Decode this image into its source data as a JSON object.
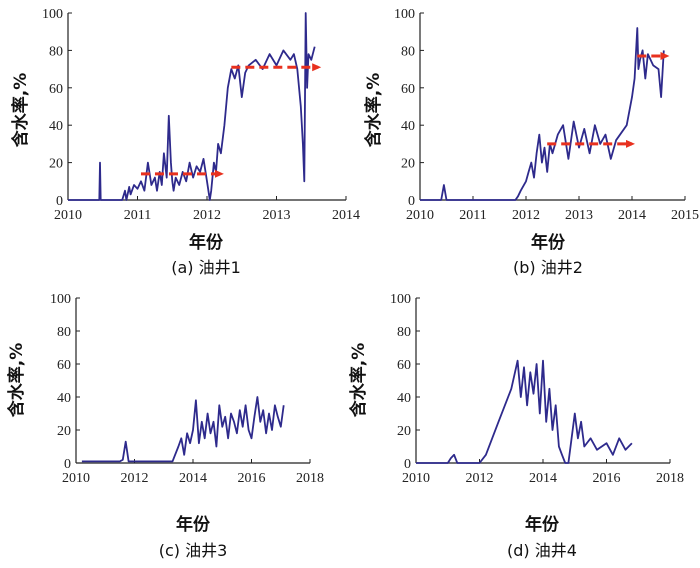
{
  "colors": {
    "line": "#2e2a8c",
    "arrow": "#e8311f",
    "axis": "#222222"
  },
  "chart_data": [
    {
      "type": "line",
      "caption": "(a) 油井1",
      "xlabel": "年份",
      "ylabel": "含水率,%",
      "xlim": [
        2010,
        2014
      ],
      "ylim": [
        0,
        100
      ],
      "xticks": [
        "2010",
        "2011",
        "2012",
        "2013",
        "2014"
      ],
      "yticks": [
        "0",
        "20",
        "40",
        "60",
        "80",
        "100"
      ],
      "series": [
        {
          "x": [
            2010.0,
            2010.45,
            2010.46,
            2010.47,
            2010.48,
            2010.7,
            2010.78,
            2010.82,
            2010.84,
            2010.88,
            2010.9,
            2010.95,
            2011.0,
            2011.05,
            2011.1,
            2011.15,
            2011.2,
            2011.25,
            2011.28,
            2011.32,
            2011.35,
            2011.38,
            2011.42,
            2011.45,
            2011.48,
            2011.5,
            2011.52,
            2011.55,
            2011.6,
            2011.65,
            2011.7,
            2011.75,
            2011.8,
            2011.85,
            2011.9,
            2011.95,
            2012.0,
            2012.04,
            2012.06,
            2012.1,
            2012.13,
            2012.16,
            2012.2,
            2012.25,
            2012.3,
            2012.35,
            2012.4,
            2012.45,
            2012.5,
            2012.55,
            2012.6,
            2012.7,
            2012.8,
            2012.9,
            2013.0,
            2013.1,
            2013.2,
            2013.25,
            2013.3,
            2013.35,
            2013.38,
            2013.4,
            2013.42,
            2013.44,
            2013.46,
            2013.5,
            2013.55
          ],
          "y": [
            0,
            0,
            20,
            0,
            0,
            0,
            0,
            5,
            0,
            7,
            3,
            8,
            6,
            10,
            5,
            20,
            8,
            12,
            5,
            15,
            8,
            25,
            12,
            45,
            20,
            10,
            5,
            12,
            8,
            15,
            10,
            20,
            12,
            18,
            15,
            22,
            10,
            0,
            5,
            20,
            15,
            30,
            25,
            40,
            60,
            70,
            65,
            72,
            55,
            68,
            72,
            75,
            70,
            78,
            72,
            80,
            75,
            78,
            70,
            50,
            30,
            10,
            100,
            60,
            78,
            75,
            82
          ]
        }
      ],
      "arrows": [
        {
          "from": [
            2011.05,
            14
          ],
          "to": [
            2012.2,
            14
          ]
        },
        {
          "from": [
            2012.35,
            71
          ],
          "to": [
            2013.6,
            71
          ]
        }
      ]
    },
    {
      "type": "line",
      "caption": "(b) 油井2",
      "xlabel": "年份",
      "ylabel": "含水率,%",
      "xlim": [
        2010,
        2015
      ],
      "ylim": [
        0,
        100
      ],
      "xticks": [
        "2010",
        "2011",
        "2012",
        "2013",
        "2014",
        "2015"
      ],
      "yticks": [
        "0",
        "20",
        "40",
        "60",
        "80",
        "100"
      ],
      "series": [
        {
          "x": [
            2010.0,
            2010.4,
            2010.45,
            2010.5,
            2010.8,
            2011.5,
            2011.8,
            2011.85,
            2011.9,
            2012.0,
            2012.05,
            2012.1,
            2012.15,
            2012.2,
            2012.25,
            2012.3,
            2012.35,
            2012.4,
            2012.45,
            2012.5,
            2012.6,
            2012.7,
            2012.8,
            2012.9,
            2013.0,
            2013.1,
            2013.2,
            2013.3,
            2013.4,
            2013.5,
            2013.6,
            2013.7,
            2013.8,
            2013.9,
            2014.0,
            2014.05,
            2014.1,
            2014.12,
            2014.15,
            2014.2,
            2014.25,
            2014.3,
            2014.4,
            2014.5,
            2014.55,
            2014.6
          ],
          "y": [
            0,
            0,
            8,
            0,
            0,
            0,
            0,
            2,
            5,
            10,
            15,
            20,
            12,
            25,
            35,
            20,
            28,
            15,
            30,
            25,
            35,
            40,
            22,
            42,
            28,
            38,
            25,
            40,
            30,
            35,
            22,
            32,
            36,
            40,
            55,
            65,
            92,
            70,
            75,
            80,
            65,
            78,
            72,
            70,
            55,
            80
          ]
        }
      ],
      "arrows": [
        {
          "from": [
            2012.4,
            30
          ],
          "to": [
            2014.0,
            30
          ]
        },
        {
          "from": [
            2014.1,
            77
          ],
          "to": [
            2014.65,
            77
          ]
        }
      ]
    },
    {
      "type": "line",
      "caption": "(c) 油井3",
      "xlabel": "年份",
      "ylabel": "含水率,%",
      "xlim": [
        2010,
        2018
      ],
      "ylim": [
        0,
        100
      ],
      "xticks": [
        "2010",
        "2012",
        "2014",
        "2016",
        "2018"
      ],
      "yticks": [
        "0",
        "20",
        "40",
        "60",
        "80",
        "100"
      ],
      "series": [
        {
          "x": [
            2010.2,
            2011.5,
            2011.6,
            2011.7,
            2011.8,
            2013.0,
            2013.3,
            2013.5,
            2013.6,
            2013.7,
            2013.8,
            2013.9,
            2014.0,
            2014.1,
            2014.2,
            2014.3,
            2014.4,
            2014.5,
            2014.6,
            2014.7,
            2014.8,
            2014.9,
            2015.0,
            2015.1,
            2015.2,
            2015.3,
            2015.4,
            2015.5,
            2015.6,
            2015.7,
            2015.8,
            2015.9,
            2016.0,
            2016.1,
            2016.2,
            2016.3,
            2016.4,
            2016.5,
            2016.6,
            2016.7,
            2016.8,
            2016.9,
            2017.0,
            2017.1
          ],
          "y": [
            1,
            1,
            2,
            13,
            1,
            1,
            1,
            10,
            15,
            5,
            18,
            12,
            20,
            38,
            12,
            25,
            15,
            30,
            18,
            25,
            10,
            35,
            22,
            28,
            15,
            30,
            25,
            18,
            32,
            22,
            35,
            20,
            15,
            28,
            40,
            25,
            32,
            18,
            30,
            20,
            35,
            28,
            22,
            35
          ]
        }
      ]
    },
    {
      "type": "line",
      "caption": "(d) 油井4",
      "xlabel": "年份",
      "ylabel": "含水率,%",
      "xlim": [
        2010,
        2018
      ],
      "ylim": [
        0,
        100
      ],
      "xticks": [
        "2010",
        "2012",
        "2014",
        "2016",
        "2018"
      ],
      "yticks": [
        "0",
        "20",
        "40",
        "60",
        "80",
        "100"
      ],
      "series": [
        {
          "x": [
            2010.0,
            2011.0,
            2011.1,
            2011.2,
            2011.3,
            2012.0,
            2012.2,
            2012.4,
            2012.6,
            2012.8,
            2013.0,
            2013.2,
            2013.3,
            2013.4,
            2013.5,
            2013.6,
            2013.7,
            2013.8,
            2013.9,
            2014.0,
            2014.1,
            2014.2,
            2014.3,
            2014.4,
            2014.5,
            2014.6,
            2014.7,
            2014.8,
            2015.0,
            2015.1,
            2015.2,
            2015.3,
            2015.5,
            2015.7,
            2016.0,
            2016.2,
            2016.4,
            2016.6,
            2016.8
          ],
          "y": [
            0,
            0,
            3,
            5,
            0,
            0,
            5,
            15,
            25,
            35,
            45,
            62,
            40,
            58,
            35,
            55,
            42,
            60,
            30,
            62,
            25,
            45,
            20,
            35,
            10,
            5,
            0,
            0,
            30,
            15,
            25,
            10,
            15,
            8,
            12,
            5,
            15,
            8,
            12
          ]
        }
      ]
    }
  ]
}
